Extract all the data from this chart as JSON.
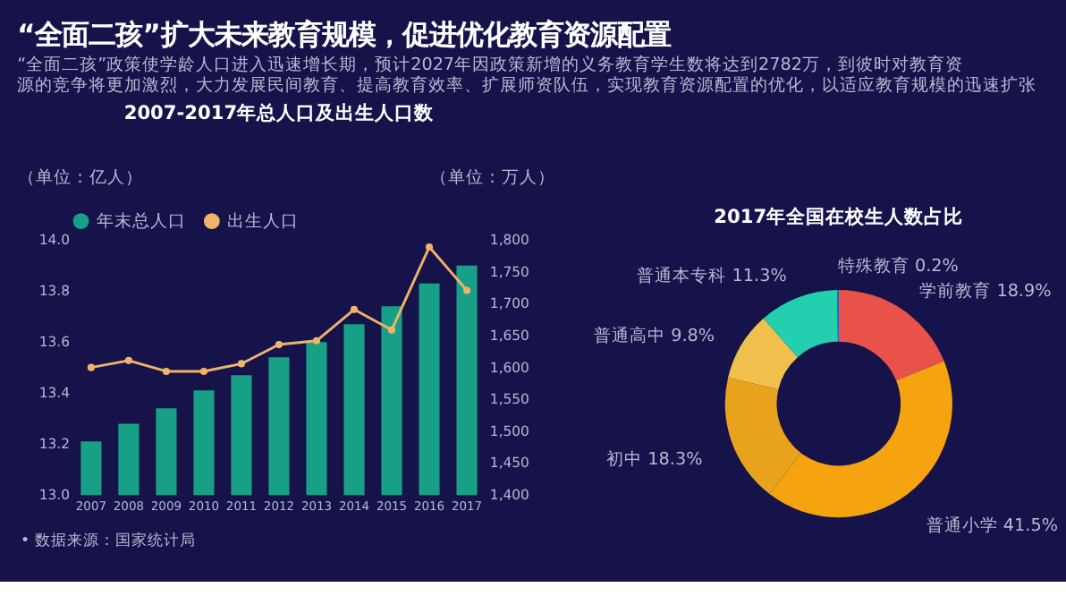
{
  "chart_data": [
    {
      "type": "other",
      "title": "“全面二孩”扩大未来教育规模，促进优化教育资源配置",
      "subtitle": "“全面二孩”政策使学龄人口进入迅速增长期，预计2027年因政策新增的义务教育学生数将达到2782万，到彼时对教育资源的竞争将更加激烈，大力发展民间教育、提高教育效率、扩展师资队伍，实现教育资源配置的优化，以适应教育规模的迅速扩张"
    },
    {
      "type": "bar",
      "title": "2007-2017年总人口及出生人口数",
      "categories": [
        "2007",
        "2008",
        "2009",
        "2010",
        "2011",
        "2012",
        "2013",
        "2014",
        "2015",
        "2016",
        "2017"
      ],
      "series": [
        {
          "name": "年末总人口",
          "type": "bar",
          "color": "#17a086",
          "values": [
            13.21,
            13.28,
            13.34,
            13.41,
            13.47,
            13.54,
            13.6,
            13.67,
            13.74,
            13.83,
            13.9
          ]
        },
        {
          "name": "出生人口",
          "type": "line",
          "axis": "y2",
          "color": "#f0b36a",
          "values": [
            1600,
            1611,
            1594,
            1594,
            1606,
            1636,
            1642,
            1691,
            1659,
            1789,
            1721
          ]
        }
      ],
      "ylabel": "（单位：亿人）",
      "y2label": "（单位：万人）",
      "ylim": [
        13.0,
        14.0
      ],
      "yticks": [
        {
          "value": 13.0,
          "label": "13.0"
        },
        13.2,
        13.4,
        13.6,
        13.8,
        {
          "value": 14.0,
          "label": "14.0"
        }
      ],
      "y2lim": [
        1400,
        1800
      ],
      "y2ticks": [
        {
          "value": 1400,
          "label": "1,400"
        },
        {
          "value": 1450,
          "label": "1,450"
        },
        {
          "value": 1500,
          "label": "1,500"
        },
        {
          "value": 1550,
          "label": "1,550"
        },
        {
          "value": 1600,
          "label": "1,600"
        },
        {
          "value": 1650,
          "label": "1,650"
        },
        {
          "value": 1700,
          "label": "1,700"
        },
        {
          "value": 1750,
          "label": "1,750"
        },
        {
          "value": 1800,
          "label": "1,800"
        }
      ],
      "legend": "top",
      "grid": false,
      "marker": "circle",
      "line_style": "solid",
      "annotations": [
        "•  数据来源：国家统计局"
      ]
    },
    {
      "type": "donut",
      "title": "2017年全国在校生人数占比",
      "categories": [
        "学前教育",
        "普通小学",
        "初中",
        "普通高中",
        "普通本专科",
        "特殊教育"
      ],
      "values": [
        18.9,
        41.5,
        18.3,
        9.8,
        11.3,
        0.2
      ],
      "colors": [
        "#e8524a",
        "#f5a30f",
        "#e9a21c",
        "#f0c04c",
        "#22cfae",
        "#3b6fd8"
      ],
      "value_labels": [
        "18.9%",
        "41.5%",
        "18.3%",
        "9.8%",
        "11.3%",
        "0.2%"
      ]
    }
  ]
}
